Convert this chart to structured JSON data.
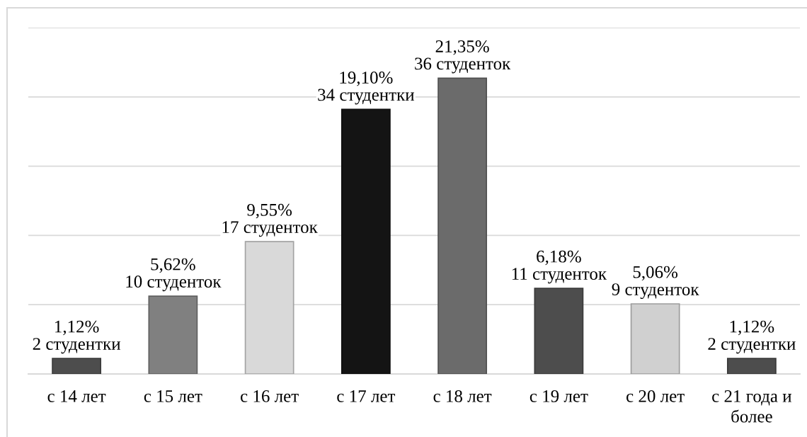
{
  "chart_data": {
    "type": "bar",
    "categories": [
      "с 14 лет",
      "с 15 лет",
      "с 16 лет",
      "с 17 лет",
      "с 18 лет",
      "с 19 лет",
      "с 20 лет",
      "с 21 года и\nболее"
    ],
    "values": [
      1.12,
      5.62,
      9.55,
      19.1,
      21.35,
      6.18,
      5.06,
      1.12
    ],
    "colors": [
      "#4d4d4d",
      "#808080",
      "#d9d9d9",
      "#141414",
      "#6b6b6b",
      "#4d4d4d",
      "#d0d0d0",
      "#4d4d4d"
    ],
    "value_labels": [
      "1,12%\n2 студентки",
      "5,62%\n10 студенток",
      "9,55%\n17 студенток",
      "19,10%\n34 студентки",
      "21,35%\n36 студенток",
      "6,18%\n11 студенток",
      "5,06%\n9 студенток",
      "1,12%\n2 студентки"
    ],
    "ylim": [
      0,
      25
    ],
    "yticks": [
      {
        "value": 0,
        "label": null
      },
      {
        "value": 5,
        "label": null
      },
      {
        "value": 10,
        "label": null
      },
      {
        "value": 15,
        "label": null
      },
      {
        "value": 20,
        "label": null
      },
      {
        "value": 25,
        "label": null
      }
    ],
    "grid": "y",
    "tick_labels": "x",
    "legend": false
  }
}
